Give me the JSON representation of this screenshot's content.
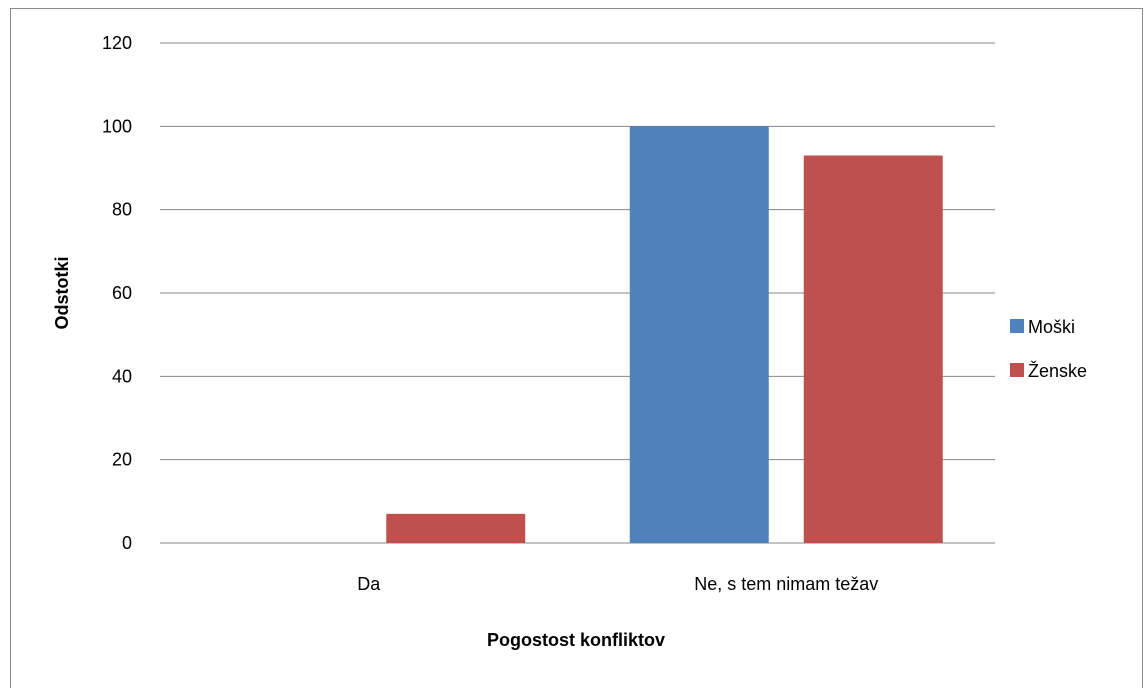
{
  "chart_data": {
    "type": "bar",
    "categories": [
      "Da",
      "Ne, s tem nimam težav"
    ],
    "series": [
      {
        "name": "Moški",
        "values": [
          0,
          100
        ],
        "color": "#4F81BD"
      },
      {
        "name": "Ženske",
        "values": [
          7,
          93
        ],
        "color": "#C0504D"
      }
    ],
    "xlabel": "Pogostost konfliktov",
    "ylabel": "Odstotki",
    "ylim": [
      0,
      120
    ],
    "yticks": [
      0,
      20,
      40,
      60,
      80,
      100,
      120
    ],
    "grid": true,
    "legend_position": "right",
    "gridline_color": "#868686"
  }
}
